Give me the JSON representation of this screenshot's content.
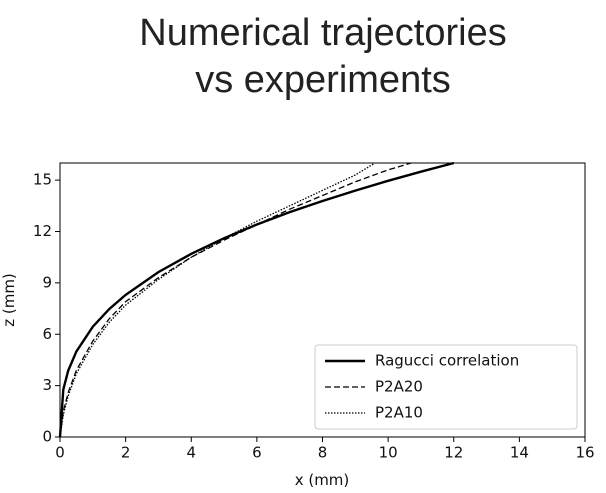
{
  "chart_data": {
    "type": "line",
    "title": [
      "Numerical trajectories",
      "vs experiments"
    ],
    "x_label": "x (mm)",
    "y_label": "z (mm)",
    "xlim": [
      0,
      16
    ],
    "xticks": [
      0,
      2,
      4,
      6,
      8,
      10,
      12,
      14,
      16
    ],
    "ylim": [
      0,
      16
    ],
    "yticks": [
      0,
      3,
      6,
      9,
      12,
      15
    ],
    "legend": "lower right",
    "series": [
      {
        "name": "Ragucci correlation",
        "color": "#000000",
        "dash": "solid",
        "x": [
          0,
          0.1,
          0.25,
          0.5,
          1,
          1.5,
          2,
          3,
          4,
          5,
          6,
          7,
          8,
          9,
          10,
          11,
          12
        ],
        "values": [
          0,
          2.77,
          3.88,
          5.0,
          6.44,
          7.47,
          8.3,
          9.63,
          10.7,
          11.61,
          12.41,
          13.13,
          13.78,
          14.39,
          14.96,
          15.49,
          16.0
        ]
      },
      {
        "name": "P2A20",
        "color": "#000000",
        "dash": "dashed",
        "x": [
          0,
          0.1,
          0.25,
          0.5,
          1,
          1.5,
          2,
          3,
          4,
          5,
          6,
          7,
          8,
          9,
          10,
          10.7
        ],
        "values": [
          0,
          1.5,
          2.6,
          3.9,
          5.6,
          6.9,
          7.9,
          9.3,
          10.5,
          11.5,
          12.4,
          13.3,
          14.1,
          14.9,
          15.6,
          16.0
        ]
      },
      {
        "name": "P2A10",
        "color": "#000000",
        "dash": "dotted",
        "x": [
          0,
          0.1,
          0.25,
          0.5,
          1,
          1.5,
          2,
          3,
          4,
          5,
          6,
          7,
          8,
          9,
          9.6
        ],
        "values": [
          0,
          1.3,
          2.4,
          3.7,
          5.4,
          6.7,
          7.7,
          9.2,
          10.5,
          11.6,
          12.6,
          13.5,
          14.4,
          15.3,
          16.0
        ]
      }
    ]
  }
}
